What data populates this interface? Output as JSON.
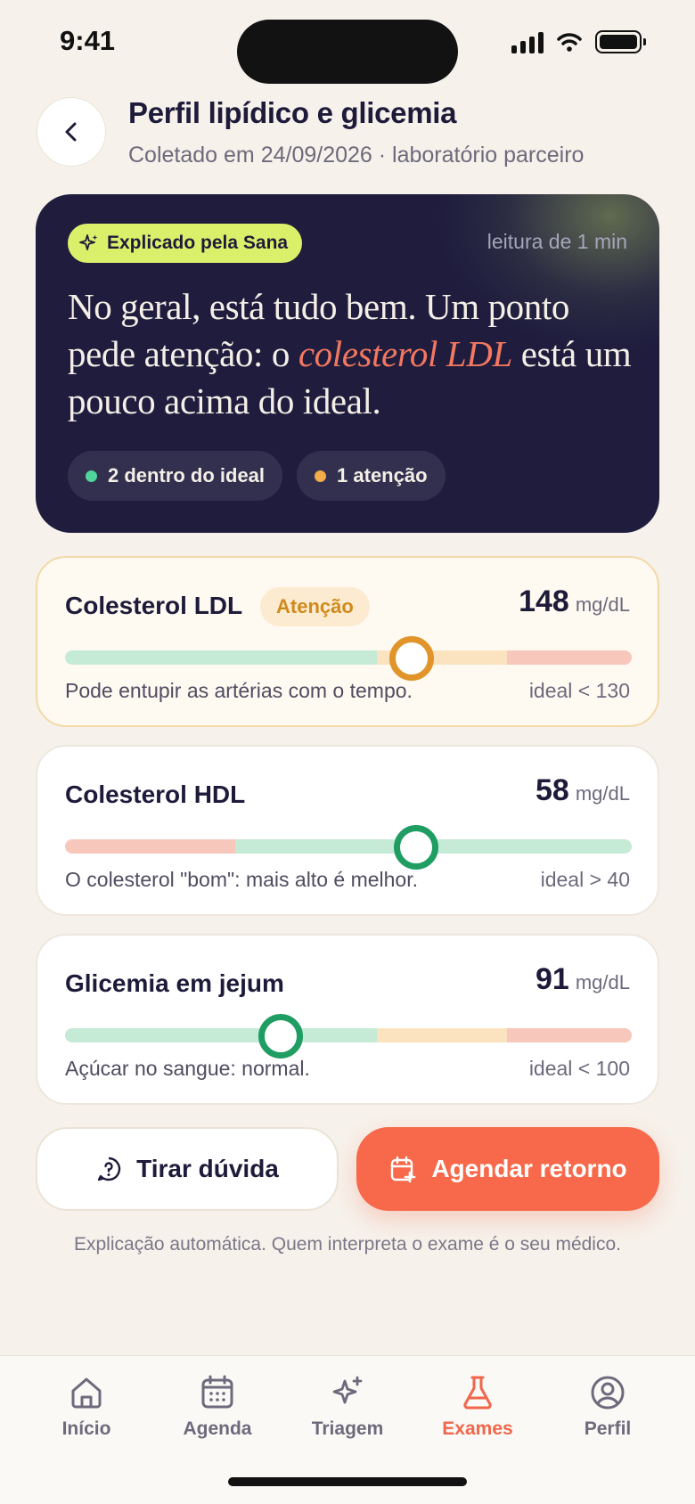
{
  "status": {
    "time": "9:41"
  },
  "header": {
    "title": "Perfil lipídico e glicemia",
    "subtitle": "Coletado em 24/09/2026 · laboratório parceiro"
  },
  "hero": {
    "badge": "Explicado pela Sana",
    "read_time": "leitura de 1 min",
    "text_before": "No geral, está tudo bem. Um ponto pede atenção: o ",
    "text_highlight": "colesterol LDL",
    "text_after": " está um pouco acima do ideal.",
    "pills": [
      {
        "label": "2 dentro do ideal",
        "color": "#4fd49a"
      },
      {
        "label": "1 atenção",
        "color": "#f2ac4a"
      }
    ]
  },
  "metrics": [
    {
      "name": "Colesterol LDL",
      "tag": "Atenção",
      "value": "148",
      "unit": "mg/dL",
      "description": "Pode entupir as artérias com o tempo.",
      "ideal": "ideal < 130",
      "level": 0.66,
      "status": "attention"
    },
    {
      "name": "Colesterol HDL",
      "value": "58",
      "unit": "mg/dL",
      "description": "O colesterol \"bom\": mais alto é melhor.",
      "ideal": "ideal > 40",
      "level": 0.62,
      "status": "ok"
    },
    {
      "name": "Glicemia em jejum",
      "value": "91",
      "unit": "mg/dL",
      "description": "Açúcar no sangue: normal.",
      "ideal": "ideal < 100",
      "level": 0.38,
      "status": "ok"
    }
  ],
  "actions": {
    "question": "Tirar dúvida",
    "schedule": "Agendar retorno"
  },
  "disclaimer": "Explicação automática. Quem interpreta o exame é o seu médico.",
  "tabs": [
    {
      "label": "Início",
      "icon": "home-icon"
    },
    {
      "label": "Agenda",
      "icon": "calendar-icon"
    },
    {
      "label": "Triagem",
      "icon": "sparkles-icon"
    },
    {
      "label": "Exames",
      "icon": "flask-icon",
      "active": true
    },
    {
      "label": "Perfil",
      "icon": "user-icon"
    }
  ],
  "colors": {
    "accent": "#f7694a",
    "navy": "#1f1c3e",
    "lime": "#dbf06a",
    "good": "#c5ead6",
    "warn": "#fbe3bf",
    "bad": "#f8c7bc",
    "knob_ok": "#1f9d62",
    "knob_warn": "#e0942a"
  }
}
